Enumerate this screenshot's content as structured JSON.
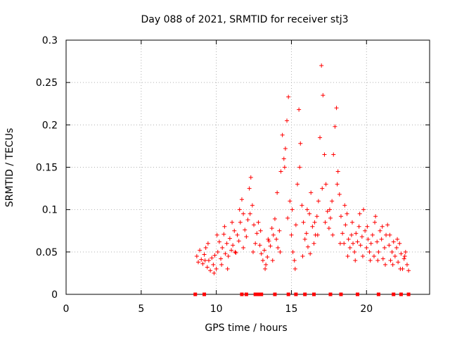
{
  "chart_data": {
    "type": "scatter",
    "title": "Day 088 of 2021, SRMTID for receiver stj3",
    "xlabel": "GPS time / hours",
    "ylabel": "SRMTID / TECUs",
    "xlim": [
      0,
      24.2
    ],
    "ylim": [
      0,
      0.3
    ],
    "x_ticks": [
      0,
      5,
      10,
      15,
      20
    ],
    "x_tick_labels": [
      "0",
      "5",
      "10",
      "15",
      "20"
    ],
    "y_ticks": [
      0,
      0.05,
      0.1,
      0.15,
      0.2,
      0.25,
      0.3
    ],
    "y_tick_labels": [
      "0",
      "0.05",
      "0.1",
      "0.15",
      "0.2",
      "0.25",
      "0.3"
    ],
    "grid": true,
    "legend": "none",
    "colors": {
      "points": "#ff0000",
      "baseline_markers": "#ff0000",
      "grid": "#b0b0b0",
      "axes": "#000000"
    },
    "series": [
      {
        "name": "SRMTID",
        "marker": "plus",
        "points": [
          [
            8.7,
            0.045
          ],
          [
            8.8,
            0.038
          ],
          [
            8.9,
            0.052
          ],
          [
            9.0,
            0.041
          ],
          [
            9.1,
            0.036
          ],
          [
            9.2,
            0.047
          ],
          [
            9.3,
            0.055
          ],
          [
            9.4,
            0.032
          ],
          [
            9.5,
            0.04
          ],
          [
            9.6,
            0.028
          ],
          [
            9.7,
            0.043
          ],
          [
            9.8,
            0.035
          ],
          [
            9.9,
            0.046
          ],
          [
            10.0,
            0.03
          ],
          [
            10.1,
            0.05
          ],
          [
            10.2,
            0.062
          ],
          [
            10.3,
            0.042
          ],
          [
            10.4,
            0.055
          ],
          [
            10.5,
            0.071
          ],
          [
            10.6,
            0.048
          ],
          [
            10.7,
            0.06
          ],
          [
            10.8,
            0.045
          ],
          [
            10.9,
            0.066
          ],
          [
            11.0,
            0.052
          ],
          [
            11.1,
            0.058
          ],
          [
            11.2,
            0.075
          ],
          [
            11.3,
            0.049
          ],
          [
            11.4,
            0.07
          ],
          [
            11.5,
            0.063
          ],
          [
            11.6,
            0.085
          ],
          [
            11.7,
            0.112
          ],
          [
            11.8,
            0.095
          ],
          [
            11.9,
            0.076
          ],
          [
            12.0,
            0.068
          ],
          [
            12.1,
            0.088
          ],
          [
            12.2,
            0.125
          ],
          [
            12.3,
            0.138
          ],
          [
            12.4,
            0.105
          ],
          [
            12.5,
            0.082
          ],
          [
            12.6,
            0.06
          ],
          [
            12.7,
            0.072
          ],
          [
            12.8,
            0.085
          ],
          [
            12.9,
            0.058
          ],
          [
            13.0,
            0.048
          ],
          [
            13.1,
            0.04
          ],
          [
            13.2,
            0.052
          ],
          [
            13.3,
            0.035
          ],
          [
            13.4,
            0.044
          ],
          [
            13.5,
            0.063
          ],
          [
            13.6,
            0.057
          ],
          [
            13.7,
            0.078
          ],
          [
            13.8,
            0.07
          ],
          [
            13.9,
            0.089
          ],
          [
            14.0,
            0.065
          ],
          [
            14.1,
            0.055
          ],
          [
            14.2,
            0.075
          ],
          [
            14.3,
            0.145
          ],
          [
            14.4,
            0.188
          ],
          [
            14.5,
            0.16
          ],
          [
            14.6,
            0.172
          ],
          [
            14.7,
            0.205
          ],
          [
            14.8,
            0.233
          ],
          [
            14.9,
            0.11
          ],
          [
            15.0,
            0.07
          ],
          [
            15.1,
            0.05
          ],
          [
            15.2,
            0.04
          ],
          [
            15.3,
            0.082
          ],
          [
            15.4,
            0.13
          ],
          [
            15.5,
            0.218
          ],
          [
            15.6,
            0.178
          ],
          [
            15.7,
            0.105
          ],
          [
            15.8,
            0.085
          ],
          [
            15.9,
            0.065
          ],
          [
            16.0,
            0.072
          ],
          [
            16.1,
            0.056
          ],
          [
            16.2,
            0.095
          ],
          [
            16.3,
            0.12
          ],
          [
            16.4,
            0.08
          ],
          [
            16.5,
            0.06
          ],
          [
            16.6,
            0.07
          ],
          [
            16.7,
            0.092
          ],
          [
            16.8,
            0.11
          ],
          [
            16.9,
            0.185
          ],
          [
            17.0,
            0.27
          ],
          [
            17.1,
            0.235
          ],
          [
            17.2,
            0.165
          ],
          [
            17.3,
            0.13
          ],
          [
            17.4,
            0.098
          ],
          [
            17.5,
            0.078
          ],
          [
            17.6,
            0.09
          ],
          [
            17.7,
            0.11
          ],
          [
            17.8,
            0.165
          ],
          [
            17.9,
            0.198
          ],
          [
            18.0,
            0.22
          ],
          [
            18.1,
            0.145
          ],
          [
            18.2,
            0.118
          ],
          [
            18.3,
            0.092
          ],
          [
            18.4,
            0.072
          ],
          [
            18.5,
            0.06
          ],
          [
            18.6,
            0.082
          ],
          [
            18.7,
            0.095
          ],
          [
            18.8,
            0.065
          ],
          [
            18.9,
            0.055
          ],
          [
            19.0,
            0.07
          ],
          [
            19.1,
            0.06
          ],
          [
            19.2,
            0.05
          ],
          [
            19.3,
            0.072
          ],
          [
            19.4,
            0.062
          ],
          [
            19.5,
            0.08
          ],
          [
            19.6,
            0.058
          ],
          [
            19.7,
            0.068
          ],
          [
            19.8,
            0.1
          ],
          [
            19.9,
            0.075
          ],
          [
            20.0,
            0.055
          ],
          [
            20.1,
            0.065
          ],
          [
            20.2,
            0.05
          ],
          [
            20.3,
            0.06
          ],
          [
            20.4,
            0.07
          ],
          [
            20.5,
            0.045
          ],
          [
            20.6,
            0.092
          ],
          [
            20.7,
            0.062
          ],
          [
            20.8,
            0.05
          ],
          [
            20.9,
            0.075
          ],
          [
            21.0,
            0.065
          ],
          [
            21.1,
            0.042
          ],
          [
            21.2,
            0.055
          ],
          [
            21.3,
            0.07
          ],
          [
            21.4,
            0.082
          ],
          [
            21.5,
            0.058
          ],
          [
            21.6,
            0.04
          ],
          [
            21.7,
            0.05
          ],
          [
            21.8,
            0.062
          ],
          [
            21.9,
            0.045
          ],
          [
            22.0,
            0.055
          ],
          [
            22.1,
            0.038
          ],
          [
            22.2,
            0.06
          ],
          [
            22.3,
            0.048
          ],
          [
            22.4,
            0.03
          ],
          [
            22.5,
            0.042
          ],
          [
            22.6,
            0.05
          ],
          [
            22.7,
            0.035
          ],
          [
            22.8,
            0.028
          ],
          [
            9.25,
            0.04
          ],
          [
            9.85,
            0.025
          ],
          [
            10.35,
            0.035
          ],
          [
            10.75,
            0.03
          ],
          [
            11.25,
            0.05
          ],
          [
            11.8,
            0.055
          ],
          [
            12.45,
            0.05
          ],
          [
            13.25,
            0.03
          ],
          [
            13.75,
            0.04
          ],
          [
            14.25,
            0.05
          ],
          [
            14.75,
            0.09
          ],
          [
            15.25,
            0.03
          ],
          [
            15.75,
            0.045
          ],
          [
            16.25,
            0.048
          ],
          [
            16.75,
            0.07
          ],
          [
            17.25,
            0.085
          ],
          [
            17.75,
            0.07
          ],
          [
            18.25,
            0.06
          ],
          [
            18.75,
            0.045
          ],
          [
            19.25,
            0.04
          ],
          [
            19.75,
            0.045
          ],
          [
            20.25,
            0.04
          ],
          [
            20.75,
            0.04
          ],
          [
            21.25,
            0.035
          ],
          [
            21.75,
            0.035
          ],
          [
            22.25,
            0.03
          ],
          [
            9.45,
            0.06
          ],
          [
            10.05,
            0.07
          ],
          [
            10.55,
            0.08
          ],
          [
            11.05,
            0.085
          ],
          [
            11.55,
            0.1
          ],
          [
            12.25,
            0.095
          ],
          [
            12.95,
            0.075
          ],
          [
            13.45,
            0.065
          ],
          [
            14.05,
            0.12
          ],
          [
            14.55,
            0.15
          ],
          [
            15.05,
            0.1
          ],
          [
            15.55,
            0.15
          ],
          [
            16.05,
            0.1
          ],
          [
            16.55,
            0.085
          ],
          [
            17.05,
            0.125
          ],
          [
            17.55,
            0.1
          ],
          [
            18.05,
            0.13
          ],
          [
            18.55,
            0.105
          ],
          [
            19.05,
            0.085
          ],
          [
            19.55,
            0.095
          ],
          [
            20.05,
            0.08
          ],
          [
            20.55,
            0.085
          ],
          [
            21.05,
            0.08
          ],
          [
            21.55,
            0.07
          ],
          [
            22.05,
            0.065
          ],
          [
            22.55,
            0.045
          ]
        ]
      }
    ],
    "baseline_markers_x": [
      8.6,
      9.2,
      11.7,
      12.0,
      12.6,
      12.8,
      13.0,
      13.9,
      14.8,
      15.3,
      15.9,
      16.5,
      17.6,
      18.3,
      19.4,
      20.8,
      21.8,
      22.3,
      22.8
    ]
  }
}
